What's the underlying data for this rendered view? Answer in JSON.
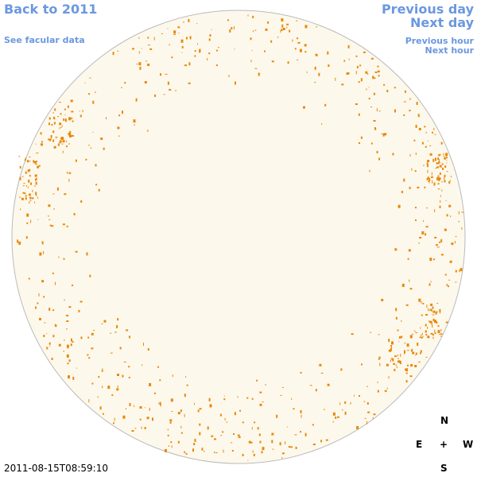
{
  "links": {
    "back": "Back to 2011",
    "facular": "See facular data",
    "previous_day": "Previous day",
    "next_day": "Next day",
    "previous_hour": "Previous hour",
    "next_hour": "Next hour"
  },
  "timestamp": "2011-08-15T08:59:10",
  "compass": {
    "north": "N",
    "east": "E",
    "center": "+",
    "west": "W",
    "south": "S"
  }
}
